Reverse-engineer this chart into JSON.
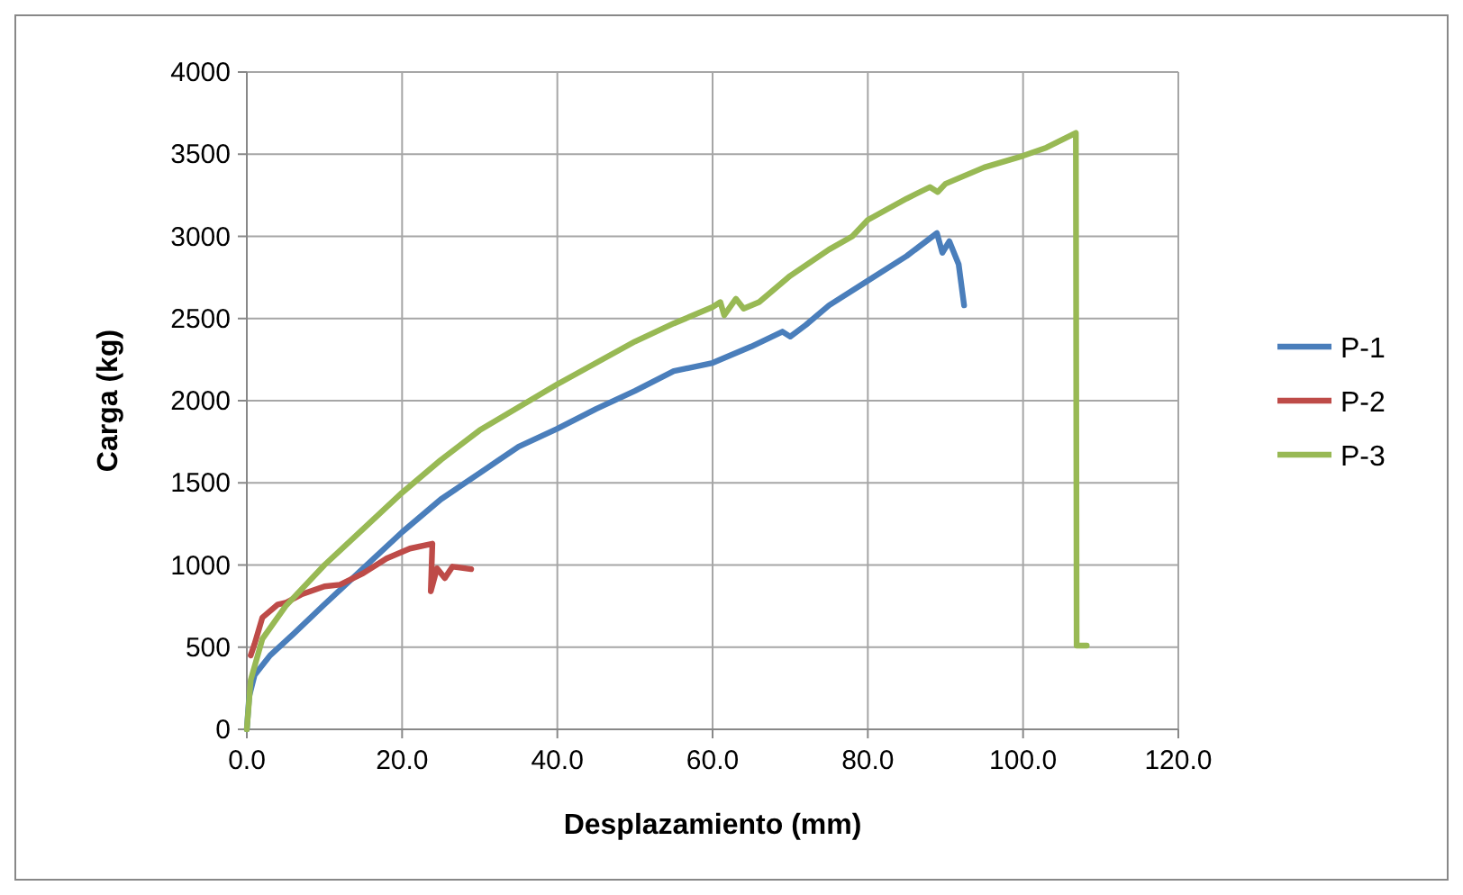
{
  "chart_data": {
    "type": "line",
    "xlabel": "Desplazamiento (mm)",
    "ylabel": "Carga (kg)",
    "xlim": [
      0,
      120
    ],
    "xticks": [
      {
        "value": 0,
        "label": "0.0"
      },
      {
        "value": 20,
        "label": "20.0"
      },
      {
        "value": 40,
        "label": "40.0"
      },
      {
        "value": 60,
        "label": "60.0"
      },
      {
        "value": 80,
        "label": "80.0"
      },
      {
        "value": 100,
        "label": "100.0"
      },
      {
        "value": 120,
        "label": "120.0"
      }
    ],
    "ylim": [
      0,
      4000
    ],
    "yticks": [
      0,
      500,
      1000,
      1500,
      2000,
      2500,
      3000,
      3500,
      4000
    ],
    "grid": true,
    "legend": "right",
    "marker": "none",
    "line_style": "solid",
    "series": [
      {
        "name": "P-1",
        "color": "#4a7ebb",
        "x": [
          0,
          0.3,
          1,
          3,
          6,
          10,
          15,
          20,
          25,
          30,
          35,
          40,
          45,
          50,
          55,
          60,
          65,
          69,
          70,
          72,
          75,
          80,
          85,
          88.9,
          89.6,
          90.5,
          91.7,
          92.4
        ],
        "values": [
          0,
          200,
          330,
          450,
          580,
          760,
          980,
          1200,
          1400,
          1560,
          1720,
          1830,
          1950,
          2060,
          2180,
          2230,
          2330,
          2420,
          2390,
          2460,
          2580,
          2730,
          2880,
          3020,
          2900,
          2970,
          2830,
          2580
        ]
      },
      {
        "name": "P-2",
        "color": "#be4b48",
        "x": [
          0.5,
          1,
          2,
          4,
          5,
          7,
          10,
          12,
          15,
          18,
          21,
          23.9,
          23.7,
          24.5,
          25.5,
          26.5,
          28.9
        ],
        "values": [
          450,
          520,
          680,
          760,
          770,
          820,
          870,
          880,
          950,
          1040,
          1100,
          1130,
          840,
          980,
          920,
          990,
          975
        ]
      },
      {
        "name": "P-3",
        "color": "#98b954",
        "x": [
          0,
          0.5,
          2,
          5,
          10,
          15,
          20,
          25,
          30,
          35,
          40,
          45,
          50,
          55,
          60,
          61,
          61.5,
          63,
          64,
          66,
          70,
          75,
          78,
          80,
          85,
          88,
          89,
          90,
          95,
          100,
          103,
          106.8,
          106.9,
          108.2
        ],
        "values": [
          0,
          300,
          550,
          750,
          1000,
          1220,
          1440,
          1640,
          1820,
          1960,
          2100,
          2230,
          2360,
          2470,
          2570,
          2600,
          2520,
          2620,
          2560,
          2600,
          2760,
          2920,
          3000,
          3100,
          3230,
          3300,
          3270,
          3320,
          3420,
          3490,
          3540,
          3630,
          510,
          510
        ]
      }
    ]
  }
}
